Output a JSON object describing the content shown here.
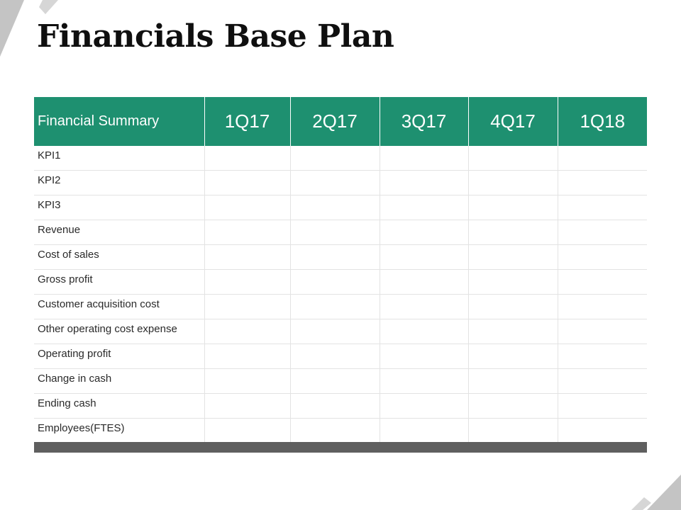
{
  "slide": {
    "title": "Financials Base Plan"
  },
  "table": {
    "header": {
      "label": "Financial Summary",
      "periods": [
        "1Q17",
        "2Q17",
        "3Q17",
        "4Q17",
        "1Q18"
      ]
    },
    "rows": [
      "KPI1",
      "KPI2",
      "KPI3",
      "Revenue",
      "Cost of sales",
      "Gross profit",
      "Customer acquisition cost",
      "Other operating cost expense",
      "Operating profit",
      "Change in cash",
      "Ending cash",
      "Employees(FTES)"
    ]
  },
  "colors": {
    "header_bg": "#1e9070",
    "header_text": "#ffffff",
    "footer_bar": "#5f5f5f",
    "section_divider": "#f2c96b",
    "grid_line": "#e3e3e3"
  }
}
